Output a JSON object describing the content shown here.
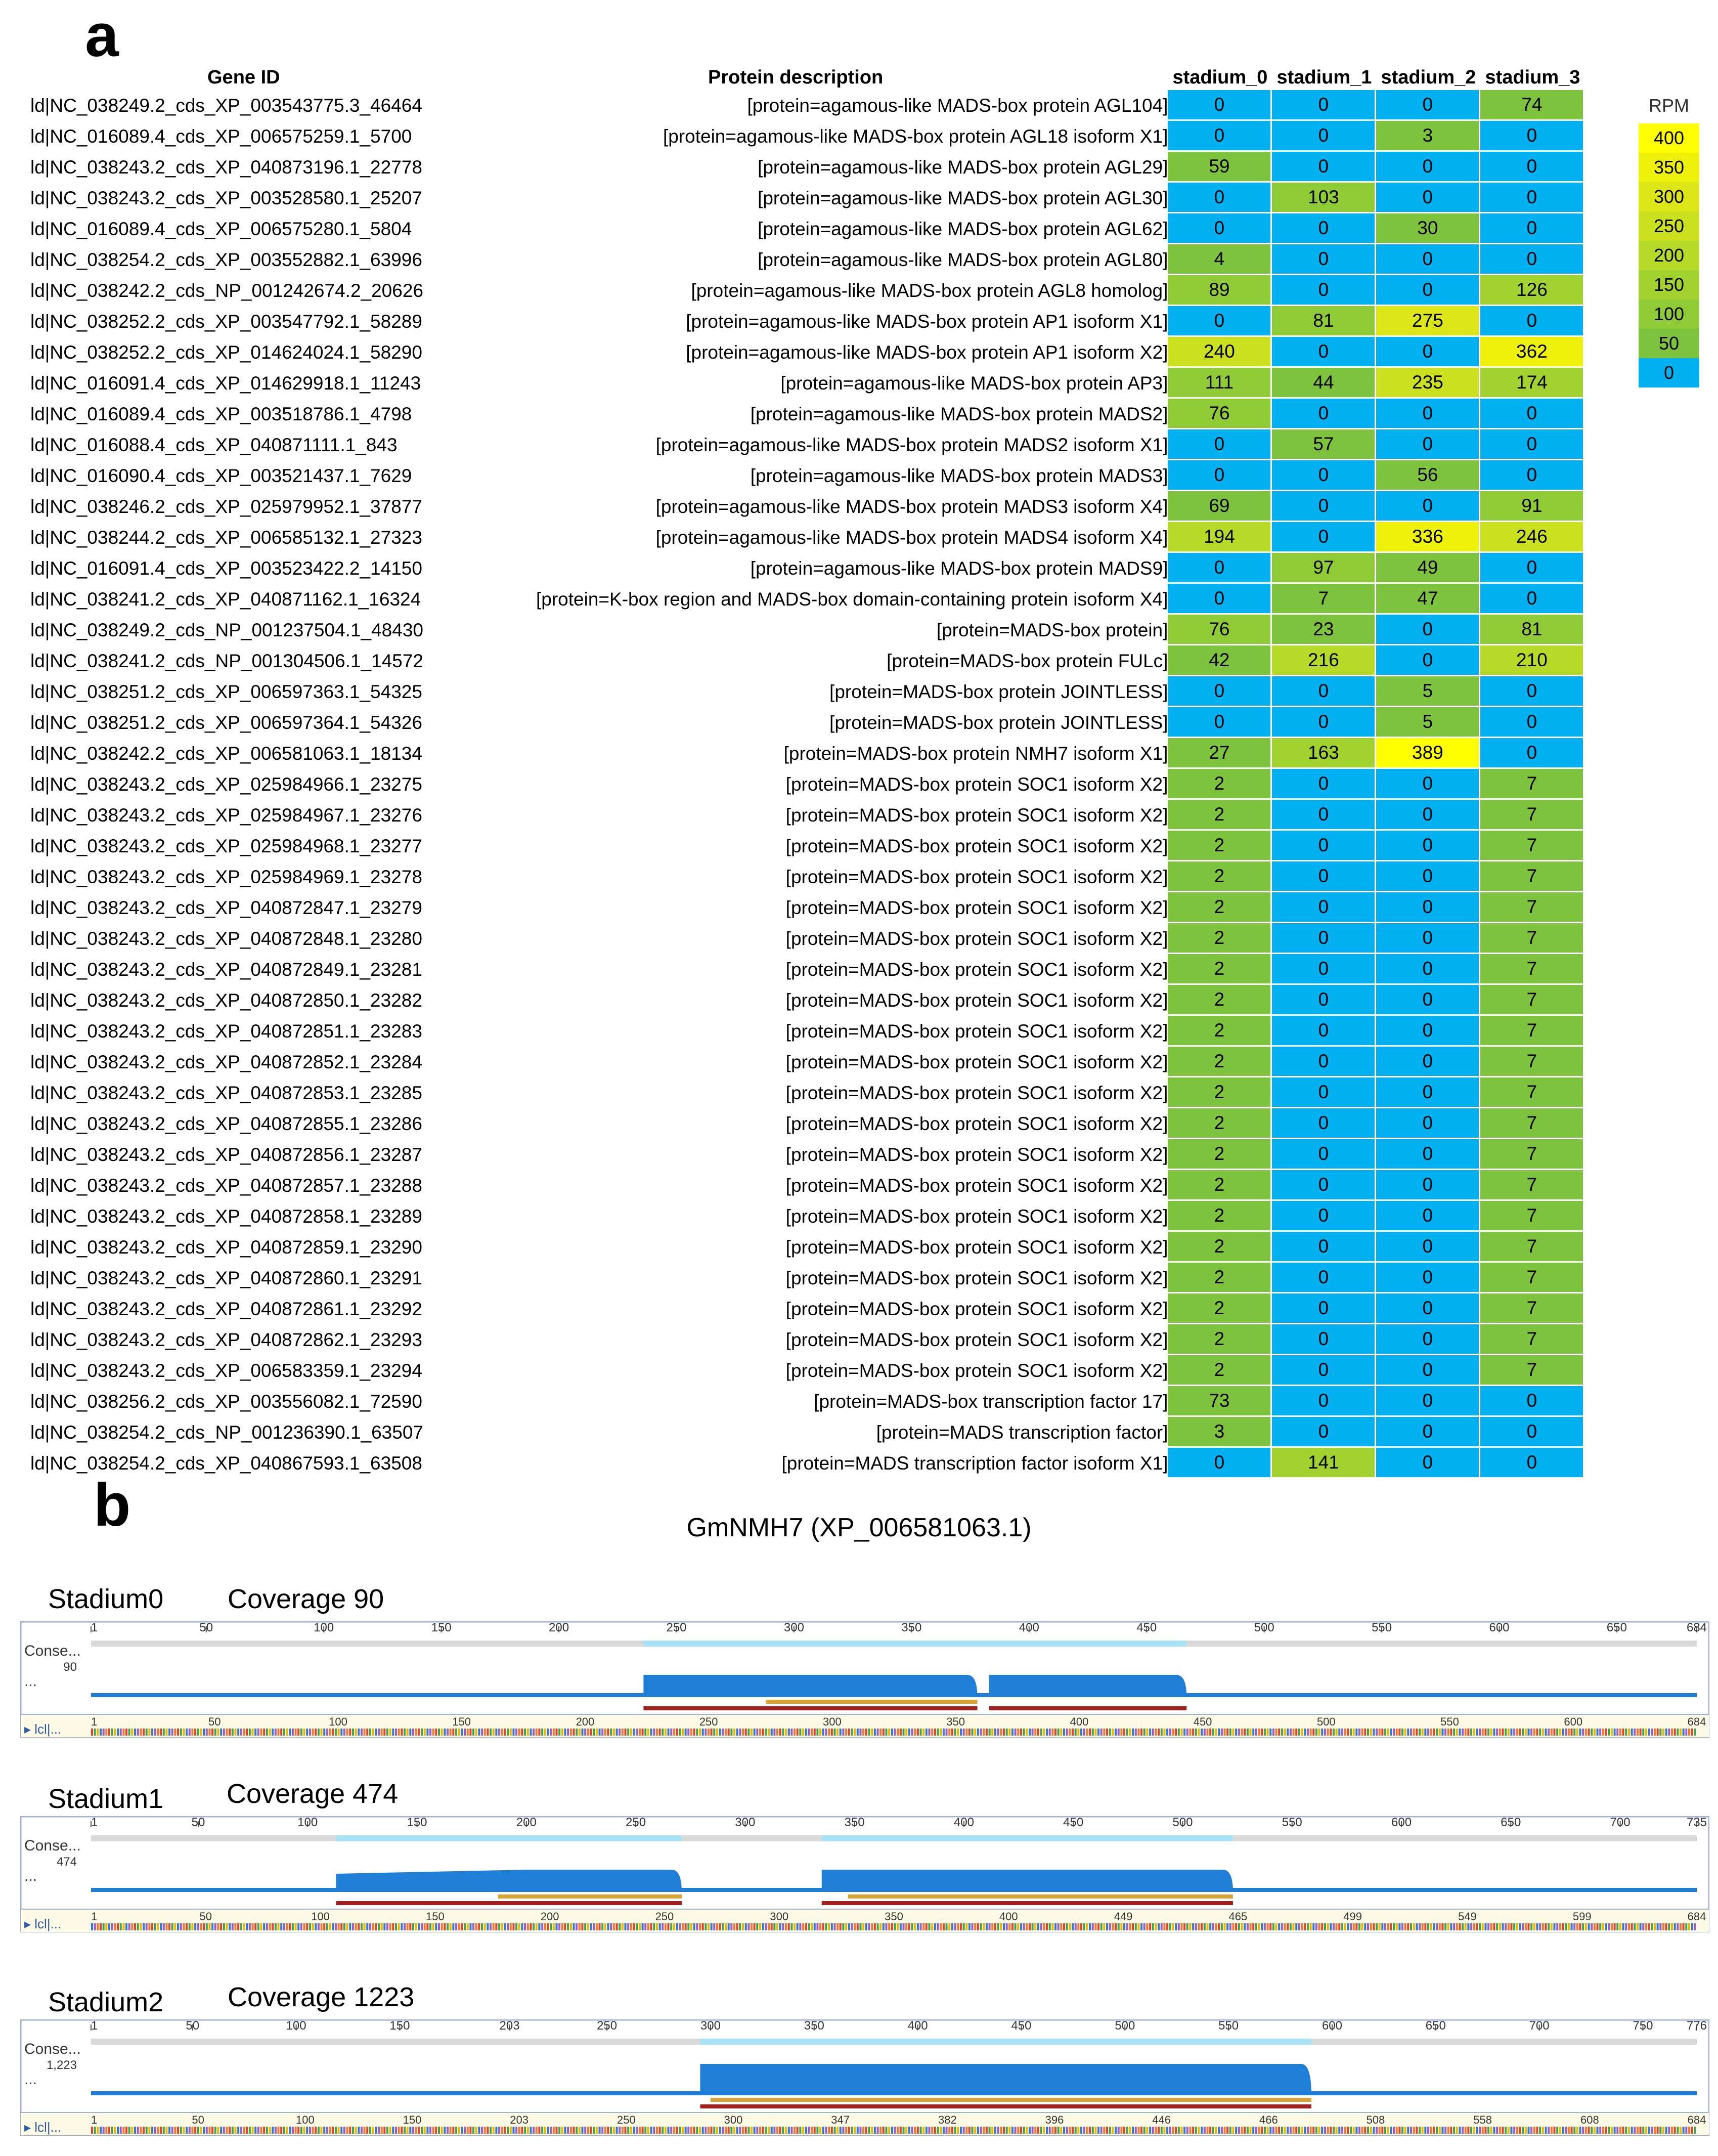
{
  "panel_a": {
    "letter": "a",
    "headers": {
      "gene_id": "Gene ID",
      "protein": "Protein description",
      "stages": [
        "stadium_0",
        "stadium_1",
        "stadium_2",
        "stadium_3"
      ]
    },
    "legend": {
      "title": "RPM",
      "levels": [
        {
          "label": "400",
          "color": "#ffff00"
        },
        {
          "label": "350",
          "color": "#eef20a"
        },
        {
          "label": "300",
          "color": "#dde617"
        },
        {
          "label": "250",
          "color": "#cbe11f"
        },
        {
          "label": "200",
          "color": "#b6da28"
        },
        {
          "label": "150",
          "color": "#a1d22f"
        },
        {
          "label": "100",
          "color": "#8fcb36"
        },
        {
          "label": "50",
          "color": "#7ec33d"
        },
        {
          "label": "0",
          "color": "#00b0f0"
        }
      ]
    },
    "rows": [
      {
        "id": "ld|NC_038249.2_cds_XP_003543775.3_46464",
        "desc": "[protein=agamous-like MADS-box protein AGL104]",
        "v": [
          0,
          0,
          0,
          74
        ]
      },
      {
        "id": "ld|NC_016089.4_cds_XP_006575259.1_5700",
        "desc": "[protein=agamous-like MADS-box protein AGL18 isoform X1]",
        "v": [
          0,
          0,
          3,
          0
        ]
      },
      {
        "id": "ld|NC_038243.2_cds_XP_040873196.1_22778",
        "desc": "[protein=agamous-like MADS-box protein AGL29]",
        "v": [
          59,
          0,
          0,
          0
        ]
      },
      {
        "id": "ld|NC_038243.2_cds_XP_003528580.1_25207",
        "desc": "[protein=agamous-like MADS-box protein AGL30]",
        "v": [
          0,
          103,
          0,
          0
        ]
      },
      {
        "id": "ld|NC_016089.4_cds_XP_006575280.1_5804",
        "desc": "[protein=agamous-like MADS-box protein AGL62]",
        "v": [
          0,
          0,
          30,
          0
        ]
      },
      {
        "id": "ld|NC_038254.2_cds_XP_003552882.1_63996",
        "desc": "[protein=agamous-like MADS-box protein AGL80]",
        "v": [
          4,
          0,
          0,
          0
        ]
      },
      {
        "id": "ld|NC_038242.2_cds_NP_001242674.2_20626",
        "desc": "[protein=agamous-like MADS-box protein AGL8 homolog]",
        "v": [
          89,
          0,
          0,
          126
        ]
      },
      {
        "id": "ld|NC_038252.2_cds_XP_003547792.1_58289",
        "desc": "[protein=agamous-like MADS-box protein AP1 isoform X1]",
        "v": [
          0,
          81,
          275,
          0
        ]
      },
      {
        "id": "ld|NC_038252.2_cds_XP_014624024.1_58290",
        "desc": "[protein=agamous-like MADS-box protein AP1 isoform X2]",
        "v": [
          240,
          0,
          0,
          362
        ]
      },
      {
        "id": "ld|NC_016091.4_cds_XP_014629918.1_11243",
        "desc": "[protein=agamous-like MADS-box protein AP3]",
        "v": [
          111,
          44,
          235,
          174
        ]
      },
      {
        "id": "ld|NC_016089.4_cds_XP_003518786.1_4798",
        "desc": "[protein=agamous-like MADS-box protein MADS2]",
        "v": [
          76,
          0,
          0,
          0
        ]
      },
      {
        "id": "ld|NC_016088.4_cds_XP_040871111.1_843",
        "desc": "[protein=agamous-like MADS-box protein MADS2 isoform X1]",
        "v": [
          0,
          57,
          0,
          0
        ]
      },
      {
        "id": "ld|NC_016090.4_cds_XP_003521437.1_7629",
        "desc": "[protein=agamous-like MADS-box protein MADS3]",
        "v": [
          0,
          0,
          56,
          0
        ]
      },
      {
        "id": "ld|NC_038246.2_cds_XP_025979952.1_37877",
        "desc": "[protein=agamous-like MADS-box protein MADS3 isoform X4]",
        "v": [
          69,
          0,
          0,
          91
        ]
      },
      {
        "id": "ld|NC_038244.2_cds_XP_006585132.1_27323",
        "desc": "[protein=agamous-like MADS-box protein MADS4 isoform X4]",
        "v": [
          194,
          0,
          336,
          246
        ]
      },
      {
        "id": "ld|NC_016091.4_cds_XP_003523422.2_14150",
        "desc": "[protein=agamous-like MADS-box protein MADS9]",
        "v": [
          0,
          97,
          49,
          0
        ]
      },
      {
        "id": "ld|NC_038241.2_cds_XP_040871162.1_16324",
        "desc": "[protein=K-box region and MADS-box domain-containing protein isoform X4]",
        "v": [
          0,
          7,
          47,
          0
        ]
      },
      {
        "id": "ld|NC_038249.2_cds_NP_001237504.1_48430",
        "desc": "[protein=MADS-box protein]",
        "v": [
          76,
          23,
          0,
          81
        ]
      },
      {
        "id": "ld|NC_038241.2_cds_NP_001304506.1_14572",
        "desc": "[protein=MADS-box protein FULc]",
        "v": [
          42,
          216,
          0,
          210
        ]
      },
      {
        "id": "ld|NC_038251.2_cds_XP_006597363.1_54325",
        "desc": "[protein=MADS-box protein JOINTLESS]",
        "v": [
          0,
          0,
          5,
          0
        ]
      },
      {
        "id": "ld|NC_038251.2_cds_XP_006597364.1_54326",
        "desc": "[protein=MADS-box protein JOINTLESS]",
        "v": [
          0,
          0,
          5,
          0
        ]
      },
      {
        "id": "ld|NC_038242.2_cds_XP_006581063.1_18134",
        "desc": "[protein=MADS-box protein NMH7 isoform X1]",
        "v": [
          27,
          163,
          389,
          0
        ]
      },
      {
        "id": "ld|NC_038243.2_cds_XP_025984966.1_23275",
        "desc": "[protein=MADS-box protein SOC1 isoform X2]",
        "v": [
          2,
          0,
          0,
          7
        ]
      },
      {
        "id": "ld|NC_038243.2_cds_XP_025984967.1_23276",
        "desc": "[protein=MADS-box protein SOC1 isoform X2]",
        "v": [
          2,
          0,
          0,
          7
        ]
      },
      {
        "id": "ld|NC_038243.2_cds_XP_025984968.1_23277",
        "desc": "[protein=MADS-box protein SOC1 isoform X2]",
        "v": [
          2,
          0,
          0,
          7
        ]
      },
      {
        "id": "ld|NC_038243.2_cds_XP_025984969.1_23278",
        "desc": "[protein=MADS-box protein SOC1 isoform X2]",
        "v": [
          2,
          0,
          0,
          7
        ]
      },
      {
        "id": "ld|NC_038243.2_cds_XP_040872847.1_23279",
        "desc": "[protein=MADS-box protein SOC1 isoform X2]",
        "v": [
          2,
          0,
          0,
          7
        ]
      },
      {
        "id": "ld|NC_038243.2_cds_XP_040872848.1_23280",
        "desc": "[protein=MADS-box protein SOC1 isoform X2]",
        "v": [
          2,
          0,
          0,
          7
        ]
      },
      {
        "id": "ld|NC_038243.2_cds_XP_040872849.1_23281",
        "desc": "[protein=MADS-box protein SOC1 isoform X2]",
        "v": [
          2,
          0,
          0,
          7
        ]
      },
      {
        "id": "ld|NC_038243.2_cds_XP_040872850.1_23282",
        "desc": "[protein=MADS-box protein SOC1 isoform X2]",
        "v": [
          2,
          0,
          0,
          7
        ]
      },
      {
        "id": "ld|NC_038243.2_cds_XP_040872851.1_23283",
        "desc": "[protein=MADS-box protein SOC1 isoform X2]",
        "v": [
          2,
          0,
          0,
          7
        ]
      },
      {
        "id": "ld|NC_038243.2_cds_XP_040872852.1_23284",
        "desc": "[protein=MADS-box protein SOC1 isoform X2]",
        "v": [
          2,
          0,
          0,
          7
        ]
      },
      {
        "id": "ld|NC_038243.2_cds_XP_040872853.1_23285",
        "desc": "[protein=MADS-box protein SOC1 isoform X2]",
        "v": [
          2,
          0,
          0,
          7
        ]
      },
      {
        "id": "ld|NC_038243.2_cds_XP_040872855.1_23286",
        "desc": "[protein=MADS-box protein SOC1 isoform X2]",
        "v": [
          2,
          0,
          0,
          7
        ]
      },
      {
        "id": "ld|NC_038243.2_cds_XP_040872856.1_23287",
        "desc": "[protein=MADS-box protein SOC1 isoform X2]",
        "v": [
          2,
          0,
          0,
          7
        ]
      },
      {
        "id": "ld|NC_038243.2_cds_XP_040872857.1_23288",
        "desc": "[protein=MADS-box protein SOC1 isoform X2]",
        "v": [
          2,
          0,
          0,
          7
        ]
      },
      {
        "id": "ld|NC_038243.2_cds_XP_040872858.1_23289",
        "desc": "[protein=MADS-box protein SOC1 isoform X2]",
        "v": [
          2,
          0,
          0,
          7
        ]
      },
      {
        "id": "ld|NC_038243.2_cds_XP_040872859.1_23290",
        "desc": "[protein=MADS-box protein SOC1 isoform X2]",
        "v": [
          2,
          0,
          0,
          7
        ]
      },
      {
        "id": "ld|NC_038243.2_cds_XP_040872860.1_23291",
        "desc": "[protein=MADS-box protein SOC1 isoform X2]",
        "v": [
          2,
          0,
          0,
          7
        ]
      },
      {
        "id": "ld|NC_038243.2_cds_XP_040872861.1_23292",
        "desc": "[protein=MADS-box protein SOC1 isoform X2]",
        "v": [
          2,
          0,
          0,
          7
        ]
      },
      {
        "id": "ld|NC_038243.2_cds_XP_040872862.1_23293",
        "desc": "[protein=MADS-box protein SOC1 isoform X2]",
        "v": [
          2,
          0,
          0,
          7
        ]
      },
      {
        "id": "ld|NC_038243.2_cds_XP_006583359.1_23294",
        "desc": "[protein=MADS-box protein SOC1 isoform X2]",
        "v": [
          2,
          0,
          0,
          7
        ]
      },
      {
        "id": "ld|NC_038256.2_cds_XP_003556082.1_72590",
        "desc": "[protein=MADS-box transcription factor 17]",
        "v": [
          73,
          0,
          0,
          0
        ]
      },
      {
        "id": "ld|NC_038254.2_cds_NP_001236390.1_63507",
        "desc": "[protein=MADS transcription factor]",
        "v": [
          3,
          0,
          0,
          0
        ]
      },
      {
        "id": "ld|NC_038254.2_cds_XP_040867593.1_63508",
        "desc": "[protein=MADS transcription factor isoform X1]",
        "v": [
          0,
          141,
          0,
          0
        ]
      }
    ]
  },
  "panel_b": {
    "letter": "b",
    "title": "GmNMH7 (XP_006581063.1)",
    "colors": {
      "coverage": "#1f7fd6",
      "bar_light": "#a8e3f5",
      "bar_gray": "#d9d9d9",
      "orange": "#d9a233",
      "red": "#a11f1f",
      "frame": "#9bb3d6",
      "seq_bg": "#fdfbe6"
    },
    "tracks": [
      {
        "stage": "Stadium0",
        "coverage_label": "Coverage 90",
        "row_label": "Conse...",
        "max_label": "90",
        "sub_label": "...",
        "seq_label": "lcl|...",
        "length": 684,
        "top_ticks": [
          "1",
          "50",
          "100",
          "150",
          "200",
          "250",
          "300",
          "350",
          "400",
          "450",
          "500",
          "550",
          "600",
          "650",
          "684"
        ],
        "bottom_ticks": [
          "1",
          "50",
          "100",
          "150",
          "200",
          "250",
          "300",
          "350",
          "400",
          "450",
          "500",
          "550",
          "600",
          "684"
        ]
      },
      {
        "stage": "Stadium1",
        "coverage_label": "Coverage 474",
        "row_label": "Conse...",
        "max_label": "474",
        "sub_label": "...",
        "seq_label": "lcl|...",
        "length": 735,
        "top_ticks": [
          "1",
          "50",
          "100",
          "150",
          "200",
          "250",
          "300",
          "350",
          "400",
          "450",
          "500",
          "550",
          "600",
          "650",
          "700",
          "735"
        ],
        "bottom_ticks": [
          "1",
          "50",
          "100",
          "150",
          "200",
          "250",
          "300",
          "350",
          "400",
          "449",
          "465",
          "499",
          "549",
          "599",
          "684"
        ]
      },
      {
        "stage": "Stadium2",
        "coverage_label": "Coverage 1223",
        "row_label": "Conse...",
        "max_label": "1,223",
        "sub_label": "...",
        "seq_label": "lcl|...",
        "length": 776,
        "top_ticks": [
          "1",
          "50",
          "100",
          "150",
          "203",
          "250",
          "300",
          "350",
          "400",
          "450",
          "500",
          "550",
          "600",
          "650",
          "700",
          "750",
          "776"
        ],
        "bottom_ticks": [
          "1",
          "50",
          "100",
          "150",
          "203",
          "250",
          "300",
          "347",
          "382",
          "396",
          "446",
          "466",
          "508",
          "558",
          "608",
          "684"
        ]
      }
    ]
  }
}
